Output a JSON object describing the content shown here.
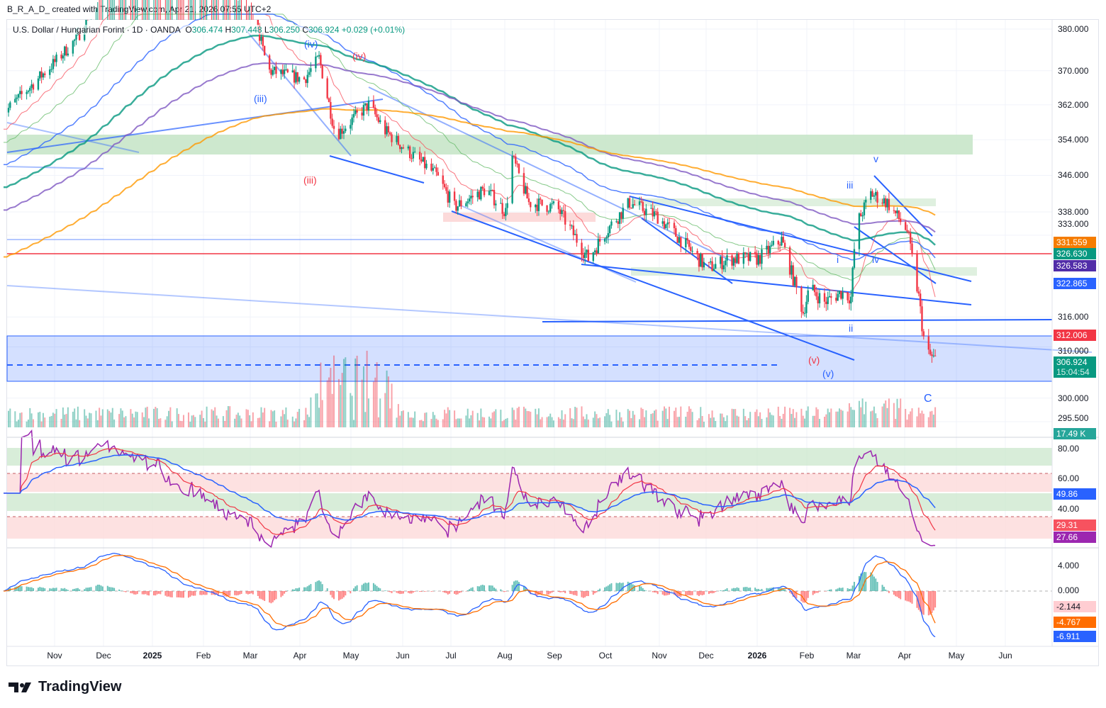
{
  "credit": "B_R_A_D_ created with TradingView.com, Apr 21, 2026 07:55 UTC+2",
  "legend": {
    "symbol": "U.S. Dollar / Hungarian Forint · 1D · OANDA",
    "o_label": "O",
    "o": "306.474",
    "h_label": "H",
    "h": "307.448",
    "l_label": "L",
    "l": "306.250",
    "c_label": "C",
    "c": "306.924",
    "change": "+0.029 (+0.01%)"
  },
  "price_axis": [
    "380.000",
    "370.000",
    "362.000",
    "354.000",
    "346.000",
    "338.000",
    "333.000",
    "316.000",
    "310.000",
    "300.000",
    "295.500"
  ],
  "price_tags": {
    "ema_orange": "331.559",
    "ema_green": "326.630",
    "ema_purple": "326.583",
    "blue_line": "322.865",
    "red_level": "312.006",
    "last": "306.924",
    "countdown": "15:04:54",
    "volume": "17.49 K"
  },
  "rsi_axis": [
    "80.00",
    "60.00",
    "40.00"
  ],
  "rsi_tags": {
    "ma": "49.86",
    "smooth": "29.31",
    "rsi": "27.66"
  },
  "macd_axis": [
    "4.000",
    "0.000"
  ],
  "macd_tags": {
    "hist": "-2.144",
    "signal": "-4.767",
    "macd": "-6.911"
  },
  "time_axis": [
    {
      "t": "Nov",
      "b": false
    },
    {
      "t": "Dec",
      "b": false
    },
    {
      "t": "2025",
      "b": true
    },
    {
      "t": "Feb",
      "b": false
    },
    {
      "t": "Mar",
      "b": false
    },
    {
      "t": "Apr",
      "b": false
    },
    {
      "t": "May",
      "b": false
    },
    {
      "t": "Jun",
      "b": false
    },
    {
      "t": "Jul",
      "b": false
    },
    {
      "t": "Aug",
      "b": false
    },
    {
      "t": "Sep",
      "b": false
    },
    {
      "t": "Oct",
      "b": false
    },
    {
      "t": "Nov",
      "b": false
    },
    {
      "t": "Dec",
      "b": false
    },
    {
      "t": "2026",
      "b": true
    },
    {
      "t": "Feb",
      "b": false
    },
    {
      "t": "Mar",
      "b": false
    },
    {
      "t": "Apr",
      "b": false
    },
    {
      "t": "May",
      "b": false
    },
    {
      "t": "Jun",
      "b": false
    }
  ],
  "waves": {
    "iii_blue": "(iii)",
    "iv_blue": "(iv)",
    "iv_red": "(iv)",
    "iii_red": "(iii)",
    "v_red": "(v)",
    "v_blue": "(v)",
    "i": "i",
    "ii": "ii",
    "iii": "iii",
    "iv": "iv",
    "v": "v",
    "C": "C"
  },
  "logo": "TradingView",
  "colors": {
    "up": "#089981",
    "down": "#f23645",
    "ema_orange": "#ff9800",
    "ema_green": "#089981",
    "ema_purple": "#673ab7",
    "blue": "#2962ff",
    "rsi": "#9c27b0"
  },
  "chart_data": {
    "type": "candlestick",
    "title": "U.S. Dollar / Hungarian Forint · 1D · OANDA",
    "scale": "log",
    "ylim": [
      295.5,
      383
    ],
    "x_unit": "days since 2024-10-01",
    "close_keypoints": [
      [
        0,
        360
      ],
      [
        31,
        372
      ],
      [
        45,
        378
      ],
      [
        61,
        392
      ],
      [
        92,
        400
      ],
      [
        123,
        395
      ],
      [
        151,
        385
      ],
      [
        160,
        370
      ],
      [
        182,
        368
      ],
      [
        191,
        373
      ],
      [
        201,
        355
      ],
      [
        221,
        362
      ],
      [
        231,
        356
      ],
      [
        243,
        352
      ],
      [
        262,
        346
      ],
      [
        273,
        339
      ],
      [
        292,
        343
      ],
      [
        304,
        338
      ],
      [
        308,
        350
      ],
      [
        318,
        340
      ],
      [
        335,
        339
      ],
      [
        354,
        328
      ],
      [
        365,
        334
      ],
      [
        379,
        340
      ],
      [
        396,
        337
      ],
      [
        410,
        332
      ],
      [
        426,
        326
      ],
      [
        440,
        328
      ],
      [
        457,
        328
      ],
      [
        471,
        332
      ],
      [
        484,
        317
      ],
      [
        488,
        322
      ],
      [
        497,
        319
      ],
      [
        507,
        321
      ],
      [
        513,
        320
      ],
      [
        516,
        335
      ],
      [
        525,
        342
      ],
      [
        535,
        340
      ],
      [
        547,
        334
      ],
      [
        554,
        320
      ],
      [
        558,
        309
      ],
      [
        566,
        306.9
      ]
    ],
    "levels": {
      "red_horizontal": 330,
      "green_zone": [
        350,
        354.5
      ],
      "blue_box": [
        303.5,
        312.2
      ],
      "support": 315.5
    },
    "indicators": [
      "EMA",
      "SMA",
      "Volume",
      "RSI 14 with MA",
      "MACD 12 26 9"
    ]
  }
}
